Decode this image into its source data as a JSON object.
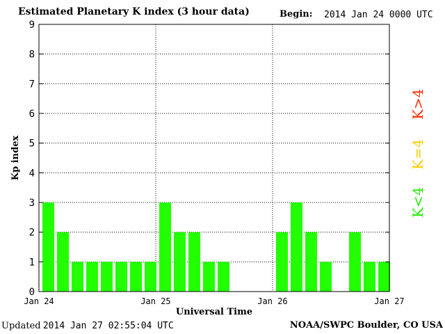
{
  "header": {
    "title": "Estimated Planetary K index (3 hour data)",
    "begin_label": "Begin:",
    "begin_value": "2014 Jan 24 0000 UTC"
  },
  "footer": {
    "updated_label": "Updated",
    "updated_value": "2014 Jan 27 02:55:04 UTC",
    "credit": "NOAA/SWPC Boulder, CO USA"
  },
  "legend": {
    "high": {
      "label": "K>4",
      "color": "#ff2a00"
    },
    "equal": {
      "label": "K=4",
      "color": "#ffcc00"
    },
    "low": {
      "label": "K<4",
      "color": "#22ee00"
    }
  },
  "chart_data": {
    "type": "bar",
    "title": "Estimated Planetary K index (3 hour data)",
    "xlabel": "Universal Time",
    "ylabel": "Kp index",
    "ylim": [
      0,
      9
    ],
    "yticks": [
      "0",
      "1",
      "2",
      "3",
      "4",
      "5",
      "6",
      "7",
      "8",
      "9"
    ],
    "xticks": [
      "Jan 24",
      "Jan 25",
      "Jan 26",
      "Jan 27"
    ],
    "grid": true,
    "bar_color": "#22ff00",
    "interval_hours": 3,
    "values": [
      3,
      2,
      1,
      1,
      1,
      1,
      1,
      1,
      3,
      2,
      2,
      1,
      1,
      null,
      null,
      null,
      2,
      3,
      2,
      1,
      null,
      2,
      1,
      1
    ]
  }
}
